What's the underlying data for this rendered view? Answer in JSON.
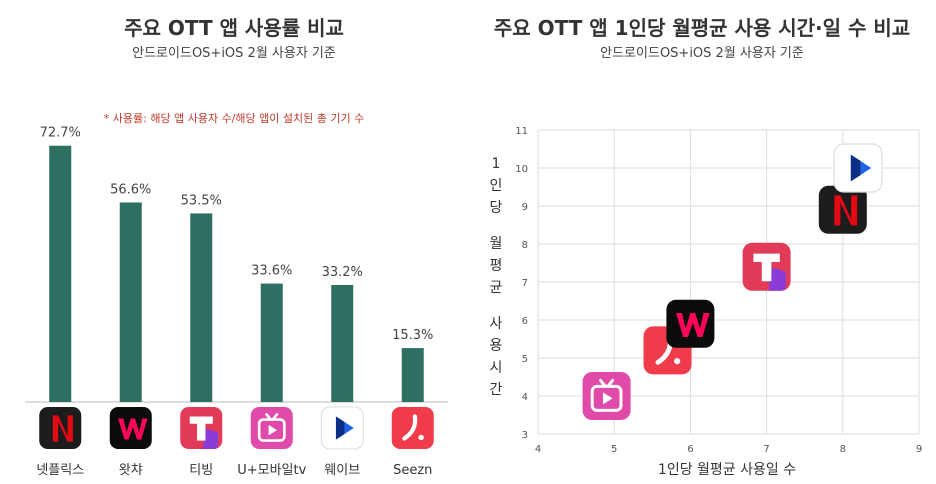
{
  "left_chart": {
    "title": "주요  OTT 앱 사용률 비교",
    "subtitle": "안드로이드OS+iOS 2월 사용자 기준",
    "note": "* 사용률: 해당 앱 사용자 수/해당 앱이 설치된 총 기기 수",
    "bar_color": "#2e6f62"
  },
  "right_chart": {
    "title": "주요  OTT 앱 1인당 월평균 사용 시간·일 수 비교",
    "subtitle": "안드로이드OS+iOS 2월 사용자 기준",
    "xlabel": "1인당 월평균 사용일 수",
    "ylabel": "1인당 월평균 사용시간"
  },
  "chart_data": [
    {
      "type": "bar",
      "title": "주요  OTT 앱 사용률 비교",
      "subtitle": "안드로이드OS+iOS 2월 사용자 기준",
      "categories": [
        "넷플릭스",
        "왓챠",
        "티빙",
        "U+모바일tv",
        "웨이브",
        "Seezn"
      ],
      "values": [
        72.7,
        56.6,
        53.5,
        33.6,
        33.2,
        15.3
      ],
      "value_labels": [
        "72.7%",
        "56.6%",
        "53.5%",
        "33.6%",
        "33.2%",
        "15.3%"
      ],
      "unit": "%",
      "ylim": [
        0,
        80
      ],
      "grid": false
    },
    {
      "type": "scatter",
      "title": "주요  OTT 앱 1인당 월평균 사용 시간·일 수 비교",
      "subtitle": "안드로이드OS+iOS 2월 사용자 기준",
      "xlabel": "1인당 월평균 사용일 수",
      "ylabel": "1인당 월평균 사용시간",
      "xlim": [
        4,
        9
      ],
      "ylim": [
        3,
        11
      ],
      "xticks": [
        "4",
        "5",
        "6",
        "7",
        "8",
        "9"
      ],
      "yticks": [
        "3",
        "4",
        "5",
        "6",
        "7",
        "8",
        "9",
        "10",
        "11"
      ],
      "grid": true,
      "points": [
        {
          "app": "U+모바일tv",
          "icon": "uplus-icon",
          "x": 4.9,
          "y": 4.0
        },
        {
          "app": "Seezn",
          "icon": "seezn-icon",
          "x": 5.7,
          "y": 5.2
        },
        {
          "app": "왓챠",
          "icon": "watcha-icon",
          "x": 6.0,
          "y": 5.9
        },
        {
          "app": "티빙",
          "icon": "tving-icon",
          "x": 7.0,
          "y": 7.4
        },
        {
          "app": "넷플릭스",
          "icon": "netflix-icon",
          "x": 8.0,
          "y": 8.9
        },
        {
          "app": "웨이브",
          "icon": "wavve-icon",
          "x": 8.2,
          "y": 10.0
        }
      ]
    }
  ]
}
